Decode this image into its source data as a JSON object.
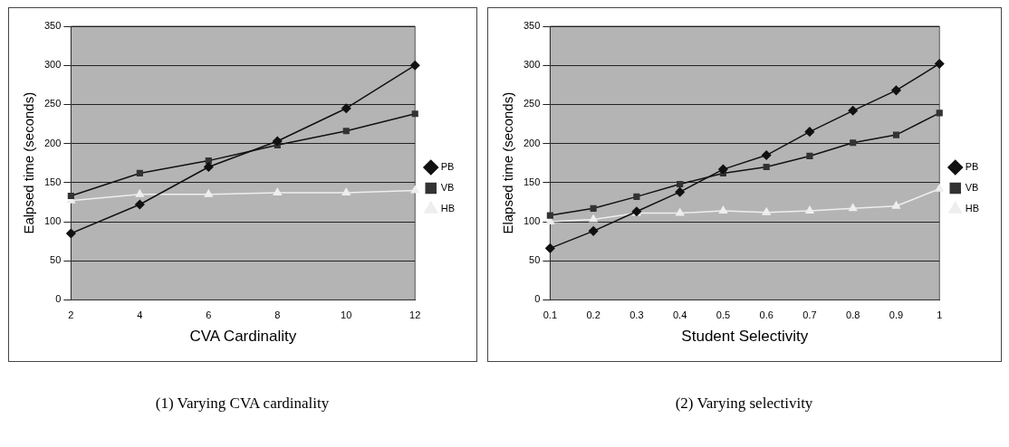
{
  "chart_data": [
    {
      "type": "line",
      "xlabel": "CVA Cardinality",
      "ylabel": "Ealpsed time (seconds)",
      "categories": [
        "2",
        "4",
        "6",
        "8",
        "10",
        "12"
      ],
      "series": [
        {
          "name": "PB",
          "color": "#111111",
          "marker": "diamond",
          "values": [
            85,
            122,
            170,
            203,
            245,
            300
          ]
        },
        {
          "name": "VB",
          "color": "#333333",
          "marker": "square",
          "values": [
            133,
            162,
            178,
            198,
            216,
            238
          ]
        },
        {
          "name": "HB",
          "color": "#eeeeee",
          "marker": "triangle",
          "values": [
            127,
            135,
            135,
            137,
            137,
            140
          ]
        }
      ],
      "ylim": [
        0,
        350
      ],
      "yticks": [
        0,
        50,
        100,
        150,
        200,
        250,
        300,
        350
      ],
      "grid": "y",
      "legend": "right",
      "line_style": "solid",
      "annotations": [
        "(1)  Varying CVA cardinality"
      ]
    },
    {
      "type": "line",
      "xlabel": "Student Selectivity",
      "ylabel": "Elapsed time (seconds)",
      "categories": [
        "0.1",
        "0.2",
        "0.3",
        "0.4",
        "0.5",
        "0.6",
        "0.7",
        "0.8",
        "0.9",
        "1"
      ],
      "series": [
        {
          "name": "PB",
          "color": "#111111",
          "marker": "diamond",
          "values": [
            66,
            88,
            113,
            138,
            167,
            185,
            215,
            242,
            268,
            302
          ]
        },
        {
          "name": "VB",
          "color": "#333333",
          "marker": "square",
          "values": [
            108,
            117,
            132,
            148,
            162,
            170,
            184,
            201,
            211,
            239
          ]
        },
        {
          "name": "HB",
          "color": "#eeeeee",
          "marker": "triangle",
          "values": [
            100,
            103,
            111,
            111,
            114,
            112,
            114,
            117,
            120,
            142
          ]
        }
      ],
      "ylim": [
        0,
        350
      ],
      "yticks": [
        0,
        50,
        100,
        150,
        200,
        250,
        300,
        350
      ],
      "grid": "y",
      "legend": "right",
      "line_style": "solid",
      "annotations": [
        "(2) Varying selectivity"
      ]
    }
  ]
}
